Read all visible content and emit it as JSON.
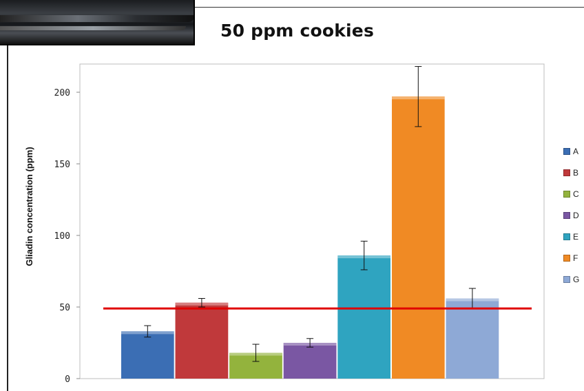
{
  "chart_data": {
    "type": "bar",
    "title": "50 ppm cookies",
    "xlabel": "",
    "ylabel": "Gliadin concentration (ppm)",
    "ylim": [
      0,
      220
    ],
    "yticks": [
      0,
      50,
      100,
      150,
      200
    ],
    "categories": [
      "A",
      "B",
      "C",
      "D",
      "E",
      "F",
      "G"
    ],
    "values": [
      33,
      53,
      18,
      25,
      86,
      197,
      56
    ],
    "errors": [
      4,
      3,
      6,
      3,
      10,
      21,
      7
    ],
    "colors": [
      "#3b6eb4",
      "#c0393b",
      "#93b33d",
      "#7a57a3",
      "#2fa4c0",
      "#f08a24",
      "#8ea9d6"
    ],
    "reference_line": {
      "value": 49,
      "color": "#e00000"
    },
    "grid": false,
    "legend": "right"
  }
}
